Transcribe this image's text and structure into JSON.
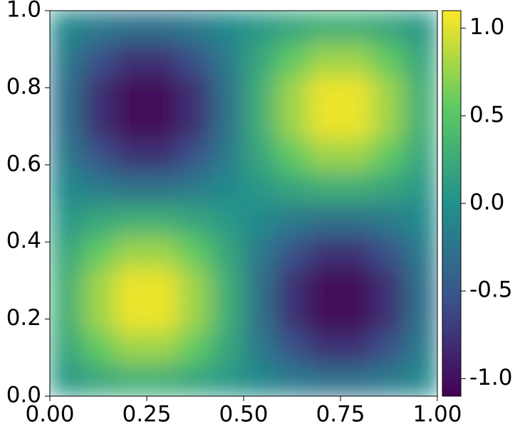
{
  "chart_data": {
    "type": "heatmap",
    "xlim": [
      0,
      1
    ],
    "ylim": [
      0,
      1
    ],
    "xticks": [
      {
        "value": 0,
        "label": "0.00"
      },
      {
        "value": 0.25,
        "label": "0.25"
      },
      {
        "value": 0.5,
        "label": "0.50"
      },
      {
        "value": 0.75,
        "label": "0.75"
      },
      {
        "value": 1,
        "label": "1.00"
      }
    ],
    "yticks": [
      {
        "value": 0,
        "label": "0.0"
      },
      0.2,
      0.4,
      0.6,
      0.8,
      {
        "value": 1,
        "label": "1.0"
      }
    ],
    "zlim": [
      -1.1,
      1.1
    ],
    "zticks": [
      {
        "value": -1,
        "label": "-1.0"
      },
      -0.5,
      {
        "value": 0,
        "label": "0.0"
      },
      0.5,
      {
        "value": 1,
        "label": "1.0"
      }
    ],
    "colormap": [
      "#440154",
      "#3b528b",
      "#21918c",
      "#5ec962",
      "#fde725"
    ],
    "z": [
      [
        0.07,
        0.2,
        0.28,
        0.28,
        0.2,
        0.07,
        -0.07,
        -0.2,
        -0.28,
        -0.28,
        -0.2,
        -0.07
      ],
      [
        0.2,
        0.55,
        0.76,
        0.76,
        0.55,
        0.2,
        -0.2,
        -0.55,
        -0.76,
        -0.76,
        -0.55,
        -0.2
      ],
      [
        0.28,
        0.76,
        1.04,
        1.04,
        0.76,
        0.28,
        -0.28,
        -0.76,
        -1.04,
        -1.04,
        -0.76,
        -0.28
      ],
      [
        0.28,
        0.76,
        1.04,
        1.04,
        0.76,
        0.28,
        -0.28,
        -0.76,
        -1.04,
        -1.04,
        -0.76,
        -0.28
      ],
      [
        0.2,
        0.55,
        0.76,
        0.76,
        0.55,
        0.2,
        -0.2,
        -0.55,
        -0.76,
        -0.76,
        -0.55,
        -0.2
      ],
      [
        0.07,
        0.2,
        0.28,
        0.28,
        0.2,
        0.07,
        -0.07,
        -0.2,
        -0.28,
        -0.28,
        -0.2,
        -0.07
      ],
      [
        -0.07,
        -0.2,
        -0.28,
        -0.28,
        -0.2,
        -0.07,
        0.07,
        0.2,
        0.28,
        0.28,
        0.2,
        0.07
      ],
      [
        -0.2,
        -0.55,
        -0.76,
        -0.76,
        -0.55,
        -0.2,
        0.2,
        0.55,
        0.76,
        0.76,
        0.55,
        0.2
      ],
      [
        -0.28,
        -0.76,
        -1.04,
        -1.04,
        -0.76,
        -0.28,
        0.28,
        0.76,
        1.04,
        1.04,
        0.76,
        0.28
      ],
      [
        -0.28,
        -0.76,
        -1.04,
        -1.04,
        -0.76,
        -0.28,
        0.28,
        0.76,
        1.04,
        1.04,
        0.76,
        0.28
      ],
      [
        -0.2,
        -0.55,
        -0.76,
        -0.76,
        -0.55,
        -0.2,
        0.2,
        0.55,
        0.76,
        0.76,
        0.55,
        0.2
      ],
      [
        -0.07,
        -0.2,
        -0.28,
        -0.28,
        -0.2,
        -0.07,
        0.07,
        0.2,
        0.28,
        0.28,
        0.2,
        0.07
      ]
    ]
  }
}
